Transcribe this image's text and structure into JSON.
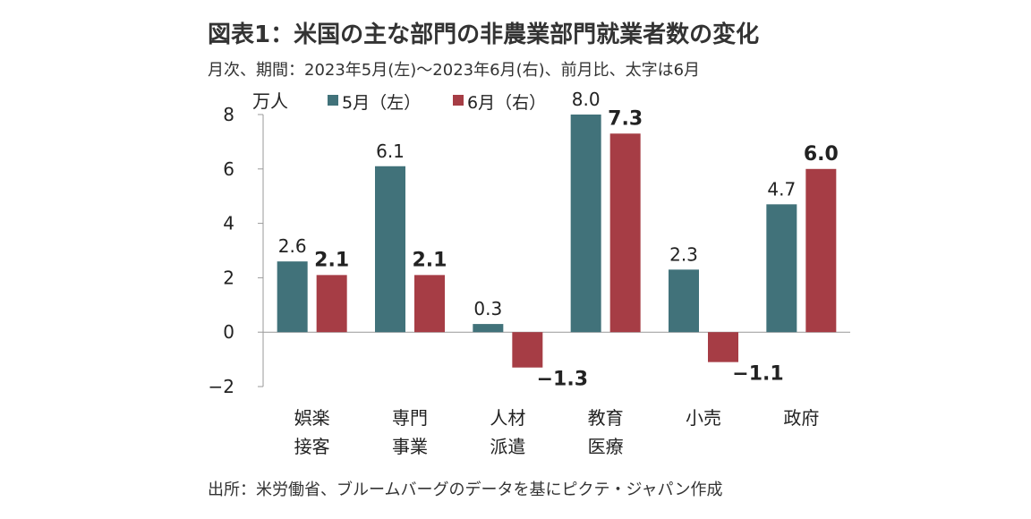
{
  "header": {
    "title": "図表1：米国の主な部門の非農業部門就業者数の変化",
    "subtitle": "月次、期間：2023年5月(左)～2023年6月(右)、前月比、太字は6月"
  },
  "footer": {
    "source": "出所：米労働省、ブルームバーグのデータを基にピクテ・ジャパン作成"
  },
  "chart_data": {
    "type": "bar",
    "unit_label": "万人",
    "categories": [
      [
        "娯楽",
        "接客"
      ],
      [
        "専門",
        "事業"
      ],
      [
        "人材",
        "派遣"
      ],
      [
        "教育",
        "医療"
      ],
      [
        "小売"
      ],
      [
        "政府"
      ]
    ],
    "series": [
      {
        "name": "5月（左）",
        "color": "#41727a",
        "values": [
          2.6,
          6.1,
          0.3,
          8.0,
          2.3,
          4.7
        ]
      },
      {
        "name": "6月（右）",
        "color": "#a63d45",
        "values": [
          2.1,
          2.1,
          -1.3,
          7.3,
          -1.1,
          6.0
        ]
      }
    ],
    "data_labels": [
      [
        "2.6",
        "6.1",
        "0.3",
        "8.0",
        "2.3",
        "4.7"
      ],
      [
        "2.1",
        "2.1",
        "−1.3",
        "7.3",
        "−1.1",
        "6.0"
      ]
    ],
    "yticks": [
      "8",
      "6",
      "4",
      "2",
      "0",
      "−2"
    ],
    "ytick_values": [
      8,
      6,
      4,
      2,
      0,
      -2
    ],
    "ylim": [
      -2,
      8
    ],
    "legend_position": "top-left",
    "grid": false
  }
}
